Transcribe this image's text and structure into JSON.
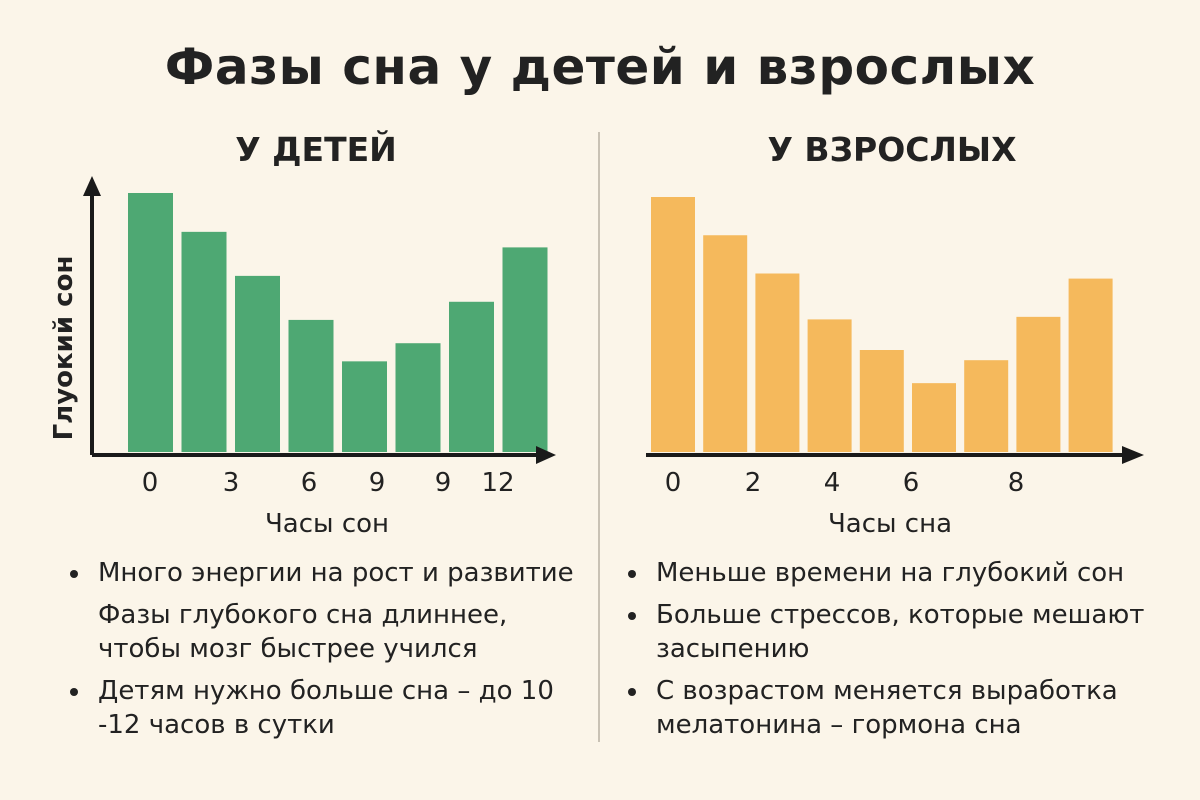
{
  "title": "Фазы сна у детей и взрослых",
  "colors": {
    "kids": "#4ea873",
    "adults": "#f5b95c",
    "axis": "#1a1a1a"
  },
  "chart_data": [
    {
      "type": "bar",
      "title": "У ДЕТЕЙ",
      "ylabel": "Глуокий сон",
      "xlabel": "Часы сон",
      "tick_labels": [
        "0",
        "3",
        "6",
        "9",
        "9",
        "12"
      ],
      "values": [
        100,
        85,
        68,
        51,
        35,
        42,
        58,
        79
      ],
      "ylim": [
        0,
        100
      ]
    },
    {
      "type": "bar",
      "title": "У ВЗРОСЛЫХ",
      "ylabel": "",
      "xlabel": "Часы сна",
      "tick_labels": [
        "0",
        "2",
        "4",
        "6",
        "8"
      ],
      "values": [
        100,
        85,
        70,
        52,
        40,
        27,
        36,
        53,
        68
      ],
      "ylim": [
        0,
        100
      ]
    }
  ],
  "kids_bullets": [
    {
      "bullet": true,
      "text": "Много энергии на рост и развитие"
    },
    {
      "bullet": false,
      "text": "Фазы глубокого сна длиннее, чтобы мозг быстрее учился"
    },
    {
      "bullet": true,
      "text": "Детям нужно больше сна – до 10 -12 часов в сутки"
    }
  ],
  "adult_bullets": [
    {
      "bullet": true,
      "text": "Меньше времени на глубокий сон"
    },
    {
      "bullet": true,
      "text": "Больше стрессов, которые мешают засыпению"
    },
    {
      "bullet": true,
      "text": "С возрастом меняется выработка мелатонина – гормона сна"
    }
  ]
}
